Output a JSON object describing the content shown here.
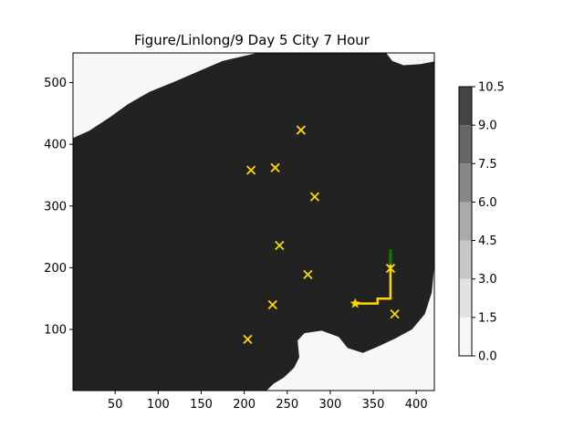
{
  "chart_data": {
    "type": "heatmap",
    "title": "Figure/Linlong/9 Day 5 City 7 Hour",
    "xlabel": "",
    "ylabel": "",
    "xlim": [
      1,
      421
    ],
    "ylim": [
      1,
      548
    ],
    "xticks": [
      50,
      100,
      150,
      200,
      250,
      300,
      350,
      400
    ],
    "yticks": [
      100,
      200,
      300,
      400,
      500
    ],
    "grid": false,
    "colorbar": {
      "levels": [
        0.0,
        1.5,
        3.0,
        4.5,
        6.0,
        7.5,
        9.0,
        10.5
      ],
      "tick_labels": [
        "0.0",
        "1.5",
        "3.0",
        "4.5",
        "6.0",
        "7.5",
        "9.0",
        "10.5"
      ],
      "colors": [
        "#f7f7f7",
        "#e2e2e2",
        "#c8c8c8",
        "#aaaaaa",
        "#888888",
        "#676767",
        "#454545",
        "#222222"
      ]
    },
    "field": {
      "fill_color": "#222222",
      "background_color": "#f7f7f7",
      "west_boundary": [
        [
          1,
          410
        ],
        [
          20,
          422
        ],
        [
          45,
          445
        ],
        [
          65,
          465
        ],
        [
          90,
          485
        ],
        [
          120,
          502
        ],
        [
          150,
          520
        ],
        [
          175,
          535
        ],
        [
          215,
          548
        ]
      ],
      "east_boundary_top": [
        [
          365,
          548
        ],
        [
          372,
          535
        ],
        [
          385,
          528
        ],
        [
          405,
          530
        ],
        [
          420,
          534
        ]
      ],
      "east_boundary_bottom": [
        [
          421,
          205
        ],
        [
          418,
          160
        ],
        [
          410,
          125
        ],
        [
          395,
          100
        ],
        [
          375,
          85
        ],
        [
          355,
          72
        ],
        [
          338,
          62
        ],
        [
          320,
          70
        ],
        [
          310,
          88
        ],
        [
          290,
          98
        ],
        [
          270,
          94
        ],
        [
          262,
          82
        ],
        [
          264,
          55
        ],
        [
          258,
          38
        ],
        [
          246,
          22
        ],
        [
          234,
          12
        ],
        [
          226,
          1
        ]
      ]
    },
    "cities": {
      "marker": "x",
      "color": "#ffd700",
      "points": [
        [
          266,
          423
        ],
        [
          208,
          358
        ],
        [
          236,
          362
        ],
        [
          282,
          315
        ],
        [
          241,
          236
        ],
        [
          274,
          189
        ],
        [
          233,
          140
        ],
        [
          204,
          84
        ],
        [
          370,
          199
        ],
        [
          375,
          125
        ]
      ]
    },
    "route": {
      "color": "#ffd700",
      "start_marker": "star",
      "points": [
        [
          329,
          142
        ],
        [
          339,
          142
        ],
        [
          355,
          142
        ],
        [
          355,
          150
        ],
        [
          370,
          150
        ],
        [
          370,
          225
        ]
      ]
    },
    "route_end": {
      "color": "#008000",
      "points": [
        [
          370,
          205
        ],
        [
          370,
          230
        ]
      ]
    }
  }
}
